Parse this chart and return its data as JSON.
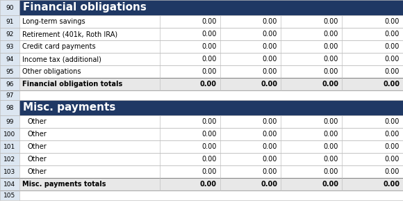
{
  "section1_header_row": 90,
  "section1_title": "Financial obligations",
  "section1_rows": [
    {
      "row": 91,
      "label": "Long-term savings",
      "values": [
        "0.00",
        "0.00",
        "0.00",
        "0.00"
      ]
    },
    {
      "row": 92,
      "label": "Retirement (401k, Roth IRA)",
      "values": [
        "0.00",
        "0.00",
        "0.00",
        "0.00"
      ]
    },
    {
      "row": 93,
      "label": "Credit card payments",
      "values": [
        "0.00",
        "0.00",
        "0.00",
        "0.00"
      ]
    },
    {
      "row": 94,
      "label": "Income tax (additional)",
      "values": [
        "0.00",
        "0.00",
        "0.00",
        "0.00"
      ]
    },
    {
      "row": 95,
      "label": "Other obligations",
      "values": [
        "0.00",
        "0.00",
        "0.00",
        "0.00"
      ]
    }
  ],
  "section1_totals_row": 96,
  "section1_totals_label": "Financial obligation totals",
  "section1_totals_values": [
    "0.00",
    "0.00",
    "0.00",
    "0.00"
  ],
  "blank_row": 97,
  "section2_header_row": 98,
  "section2_title": "Misc. payments",
  "section2_rows": [
    {
      "row": 99,
      "label": "Other",
      "values": [
        "0.00",
        "0.00",
        "0.00",
        "0.00"
      ]
    },
    {
      "row": 100,
      "label": "Other",
      "values": [
        "0.00",
        "0.00",
        "0.00",
        "0.00"
      ]
    },
    {
      "row": 101,
      "label": "Other",
      "values": [
        "0.00",
        "0.00",
        "0.00",
        "0.00"
      ]
    },
    {
      "row": 102,
      "label": "Other",
      "values": [
        "0.00",
        "0.00",
        "0.00",
        "0.00"
      ]
    },
    {
      "row": 103,
      "label": "Other",
      "values": [
        "0.00",
        "0.00",
        "0.00",
        "0.00"
      ]
    }
  ],
  "section2_totals_row": 104,
  "section2_totals_label": "Misc. payments totals",
  "section2_totals_values": [
    "0.00",
    "0.00",
    "0.00",
    "0.00"
  ],
  "last_row": 105,
  "header_bg": "#1F3864",
  "header_fg": "#FFFFFF",
  "totals_bg": "#E8E8E8",
  "totals_fg": "#000000",
  "normal_bg": "#FFFFFF",
  "normal_fg": "#000000",
  "row_num_bg": "#DCE6F1",
  "row_num_fg": "#000000",
  "grid_color": "#C0C0C0",
  "fig_width": 5.8,
  "fig_height": 3.05,
  "dpi": 100,
  "font_size": 7.0,
  "header_font_size": 11.0,
  "row_num_font_size": 6.5
}
